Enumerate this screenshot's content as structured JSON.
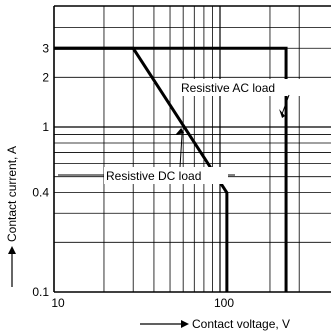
{
  "chart_data": {
    "type": "line",
    "title": "",
    "xlabel": "Contact voltage, V",
    "ylabel": "Contact current, A",
    "x_scale": "log",
    "y_scale": "log",
    "xlim": [
      10,
      330
    ],
    "ylim": [
      0.1,
      4.3
    ],
    "x_ticks": [
      {
        "value": 10,
        "label": "10"
      },
      {
        "value": 100,
        "label": "100"
      }
    ],
    "y_ticks": [
      {
        "value": 0.1,
        "label": "0.1"
      },
      {
        "value": 0.4,
        "label": "0.4"
      },
      {
        "value": 1,
        "label": "1"
      },
      {
        "value": 2,
        "label": "2"
      },
      {
        "value": 3,
        "label": "3"
      }
    ],
    "grid": true,
    "series": [
      {
        "name": "Resistive AC load",
        "x": [
          10,
          250,
          250
        ],
        "y": [
          3,
          3,
          0.1
        ]
      },
      {
        "name": "Resistive DC load",
        "x": [
          10,
          30,
          110,
          110
        ],
        "y": [
          3,
          3,
          0.4,
          0.1
        ]
      }
    ],
    "annotations": [
      {
        "text": "Resistive AC load",
        "target": "Resistive AC load"
      },
      {
        "text": "Resistive DC load",
        "target": "Resistive DC load"
      }
    ]
  },
  "colors": {
    "background": "#ffffff",
    "axis": "#000000",
    "grid": "#000000",
    "series": "#000000"
  }
}
